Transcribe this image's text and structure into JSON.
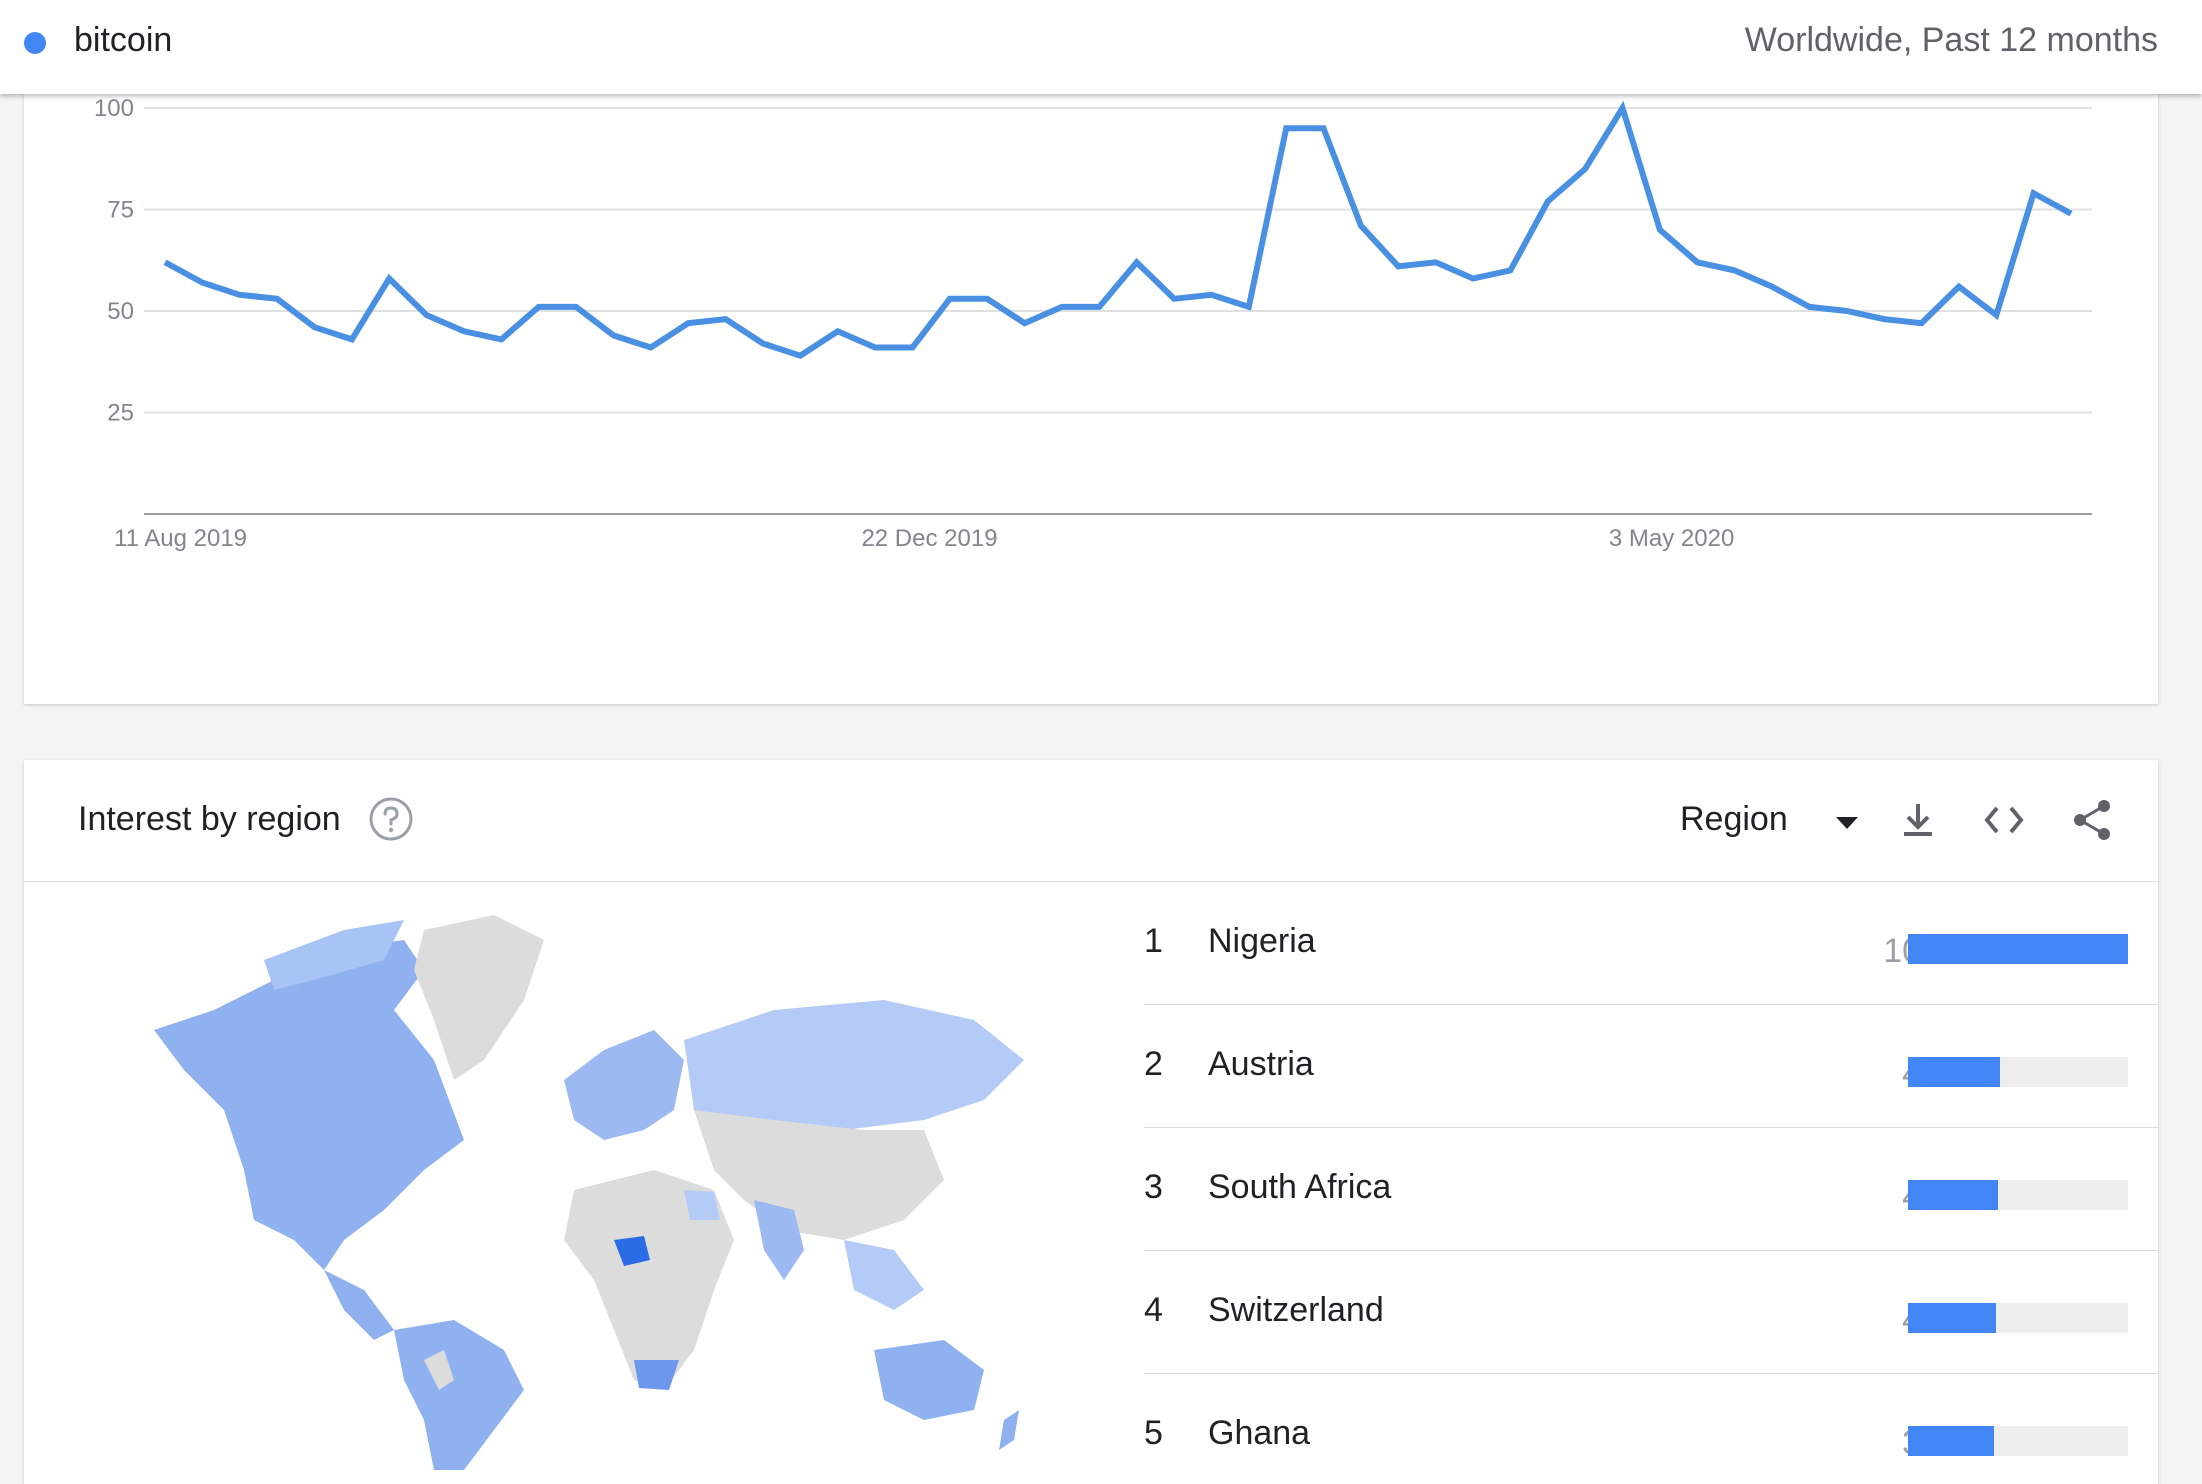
{
  "header": {
    "term": "bitcoin",
    "term_color": "#4285f4",
    "scope": "Worldwide, Past 12 months"
  },
  "chart_data": {
    "type": "line",
    "x_tick_labels": [
      "11 Aug 2019",
      "22 Dec 2019",
      "3 May 2020"
    ],
    "y_ticks": [
      25,
      50,
      75,
      100
    ],
    "ylim": [
      0,
      100
    ],
    "line_color": "#4a90e2",
    "grid": true,
    "series": [
      {
        "values": [
          62,
          57,
          54,
          53,
          46,
          43,
          58,
          49,
          45,
          43,
          51,
          51,
          44,
          41,
          47,
          48,
          42,
          39,
          45,
          41,
          41,
          53,
          53,
          47,
          51,
          51,
          62,
          53,
          54,
          51,
          95,
          95,
          71,
          61,
          62,
          58,
          60,
          77,
          85,
          100,
          70,
          62,
          60,
          56,
          51,
          50,
          48,
          47,
          56,
          49,
          79,
          74
        ]
      }
    ]
  },
  "region": {
    "title": "Interest by region",
    "help_icon": "help-circle-icon",
    "selector_label": "Region",
    "tools": [
      "download-icon",
      "embed-code-icon",
      "share-icon"
    ],
    "bar_color": "#4285f4",
    "rows": [
      {
        "rank": "1",
        "name": "Nigeria",
        "value": "100",
        "fraction": 1.0
      },
      {
        "rank": "2",
        "name": "Austria",
        "value": "42",
        "fraction": 0.42
      },
      {
        "rank": "3",
        "name": "South Africa",
        "value": "41",
        "fraction": 0.41
      },
      {
        "rank": "4",
        "name": "Switzerland",
        "value": "40",
        "fraction": 0.4
      },
      {
        "rank": "5",
        "name": "Ghana",
        "value": "39",
        "fraction": 0.39
      }
    ]
  }
}
